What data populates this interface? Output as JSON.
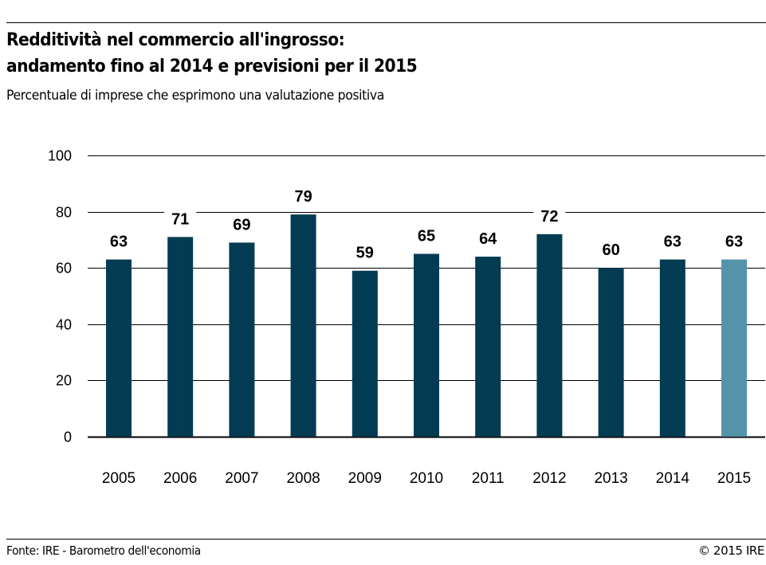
{
  "header": {
    "title_line1": "Redditività nel commercio all'ingrosso:",
    "title_line2": "andamento fino al 2014 e previsioni per il 2015",
    "subtitle": "Percentuale di imprese che esprimono una valutazione positiva"
  },
  "footer": {
    "source": "Fonte: IRE - Barometro dell'economia",
    "copyright": "© 2015 IRE"
  },
  "colors": {
    "actual": "#033c52",
    "forecast": "#5593aa",
    "grid": "#000000"
  },
  "chart_data": {
    "type": "bar",
    "title": "Redditività nel commercio all'ingrosso: andamento fino al 2014 e previsioni per il 2015",
    "subtitle": "Percentuale di imprese che esprimono una valutazione positiva",
    "xlabel": "",
    "ylabel": "",
    "categories": [
      "2005",
      "2006",
      "2007",
      "2008",
      "2009",
      "2010",
      "2011",
      "2012",
      "2013",
      "2014",
      "2015"
    ],
    "values": [
      63,
      71,
      69,
      79,
      59,
      65,
      64,
      72,
      60,
      63,
      63
    ],
    "data_labels": [
      "63",
      "71",
      "69",
      "79",
      "59",
      "65",
      "64",
      "72",
      "60",
      "63",
      "63"
    ],
    "forecast": [
      false,
      false,
      false,
      false,
      false,
      false,
      false,
      false,
      false,
      false,
      true
    ],
    "ylim": [
      0,
      100
    ],
    "yticks": [
      0,
      20,
      40,
      60,
      80,
      100
    ],
    "ytick_labels": [
      "0",
      "20",
      "40",
      "60",
      "80",
      "100"
    ],
    "grid": true,
    "legend": "none"
  }
}
